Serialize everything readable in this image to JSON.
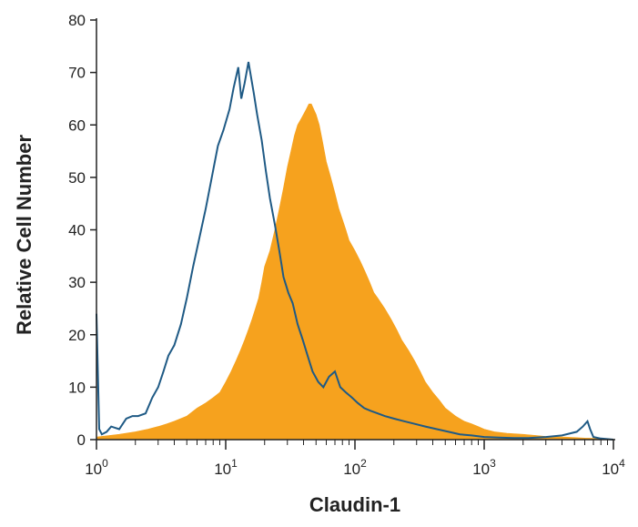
{
  "chart_data": {
    "type": "area",
    "xlabel": "Claudin-1",
    "ylabel": "Relative Cell Number",
    "x_scale": "log",
    "xlim": [
      1,
      10000
    ],
    "ylim": [
      0,
      80
    ],
    "grid": false,
    "x_ticks": [
      {
        "value": 1,
        "base": "10",
        "exp": "0"
      },
      {
        "value": 10,
        "base": "10",
        "exp": "1"
      },
      {
        "value": 100,
        "base": "10",
        "exp": "2"
      },
      {
        "value": 1000,
        "base": "10",
        "exp": "3"
      },
      {
        "value": 10000,
        "base": "10",
        "exp": "4"
      }
    ],
    "y_ticks": [
      0,
      10,
      20,
      30,
      40,
      50,
      60,
      70,
      80
    ],
    "series": [
      {
        "style": "outline",
        "color": "#1f5a85",
        "x": [
          1,
          1.05,
          1.1,
          1.2,
          1.3,
          1.5,
          1.7,
          1.9,
          2.1,
          2.4,
          2.7,
          3.0,
          3.3,
          3.6,
          4.0,
          4.5,
          5.0,
          5.6,
          6.2,
          7.0,
          7.8,
          8.7,
          9.6,
          10.7,
          11.5,
          12.5,
          13.2,
          14.0,
          15.0,
          16.5,
          17.5,
          19.0,
          20.5,
          22.0,
          24.0,
          26.0,
          28.0,
          30.5,
          33.0,
          36.0,
          39.5,
          43.0,
          47.0,
          52.0,
          57.0,
          63.0,
          70.0,
          77.0,
          85.0,
          95.0,
          105,
          118,
          132,
          150,
          170,
          200,
          240,
          290,
          350,
          430,
          530,
          650,
          800,
          1000,
          1300,
          1700,
          2200,
          3000,
          4000,
          5200,
          5800,
          6300,
          6600,
          7000,
          8000,
          10000
        ],
        "values": [
          24,
          2,
          1,
          1.5,
          2.5,
          2,
          4,
          4.5,
          4.5,
          5,
          8,
          10,
          13,
          16,
          18,
          22,
          27,
          33,
          38,
          44,
          50,
          56,
          59,
          63,
          67,
          71,
          65,
          68,
          72,
          66,
          62,
          57,
          51,
          46,
          41,
          36,
          31,
          28,
          26,
          22,
          19,
          16,
          13,
          11,
          10,
          12,
          13,
          10,
          9,
          8,
          7,
          6,
          5.5,
          5,
          4.5,
          4,
          3.5,
          3,
          2.5,
          2,
          1.5,
          1,
          0.8,
          0.5,
          0.4,
          0.3,
          0.3,
          0.5,
          0.8,
          1.5,
          2.5,
          3.5,
          2,
          0.5,
          0.2,
          0
        ]
      },
      {
        "style": "filled",
        "color": "#f6a21e",
        "x": [
          1,
          1.5,
          2,
          2.5,
          3,
          3.5,
          4,
          5,
          6,
          7,
          8,
          9,
          10,
          11,
          12,
          13,
          14,
          15,
          16,
          17,
          18,
          19,
          20,
          22,
          24,
          26,
          28,
          30,
          32,
          34,
          36,
          38,
          40,
          42,
          44,
          46,
          48,
          50,
          53,
          56,
          60,
          65,
          70,
          75,
          80,
          85,
          90,
          100,
          110,
          120,
          130,
          140,
          150,
          170,
          190,
          210,
          230,
          260,
          290,
          320,
          350,
          400,
          450,
          500,
          600,
          700,
          800,
          900,
          1000,
          1200,
          1500,
          2000,
          2500,
          3000,
          4000,
          5000,
          6000,
          8000,
          10000
        ],
        "values": [
          0.5,
          1,
          1.5,
          2,
          2.5,
          3,
          3.5,
          4.5,
          6,
          7,
          8,
          9,
          11,
          13,
          15,
          17,
          19,
          21,
          23,
          25,
          27,
          30,
          33,
          36,
          40,
          44,
          48,
          52,
          55,
          58,
          60,
          61,
          62,
          63,
          64,
          64,
          63,
          62,
          60,
          57,
          53,
          50,
          47,
          44,
          42,
          40,
          38,
          36,
          34,
          32,
          30,
          28,
          27,
          25,
          23,
          21,
          19,
          17,
          15,
          13,
          11,
          9,
          7.5,
          6,
          4.5,
          3.5,
          3,
          2.5,
          2,
          1.5,
          1.2,
          1,
          0.8,
          0.6,
          0.5,
          0.4,
          0.3,
          0.2,
          0
        ]
      }
    ]
  }
}
